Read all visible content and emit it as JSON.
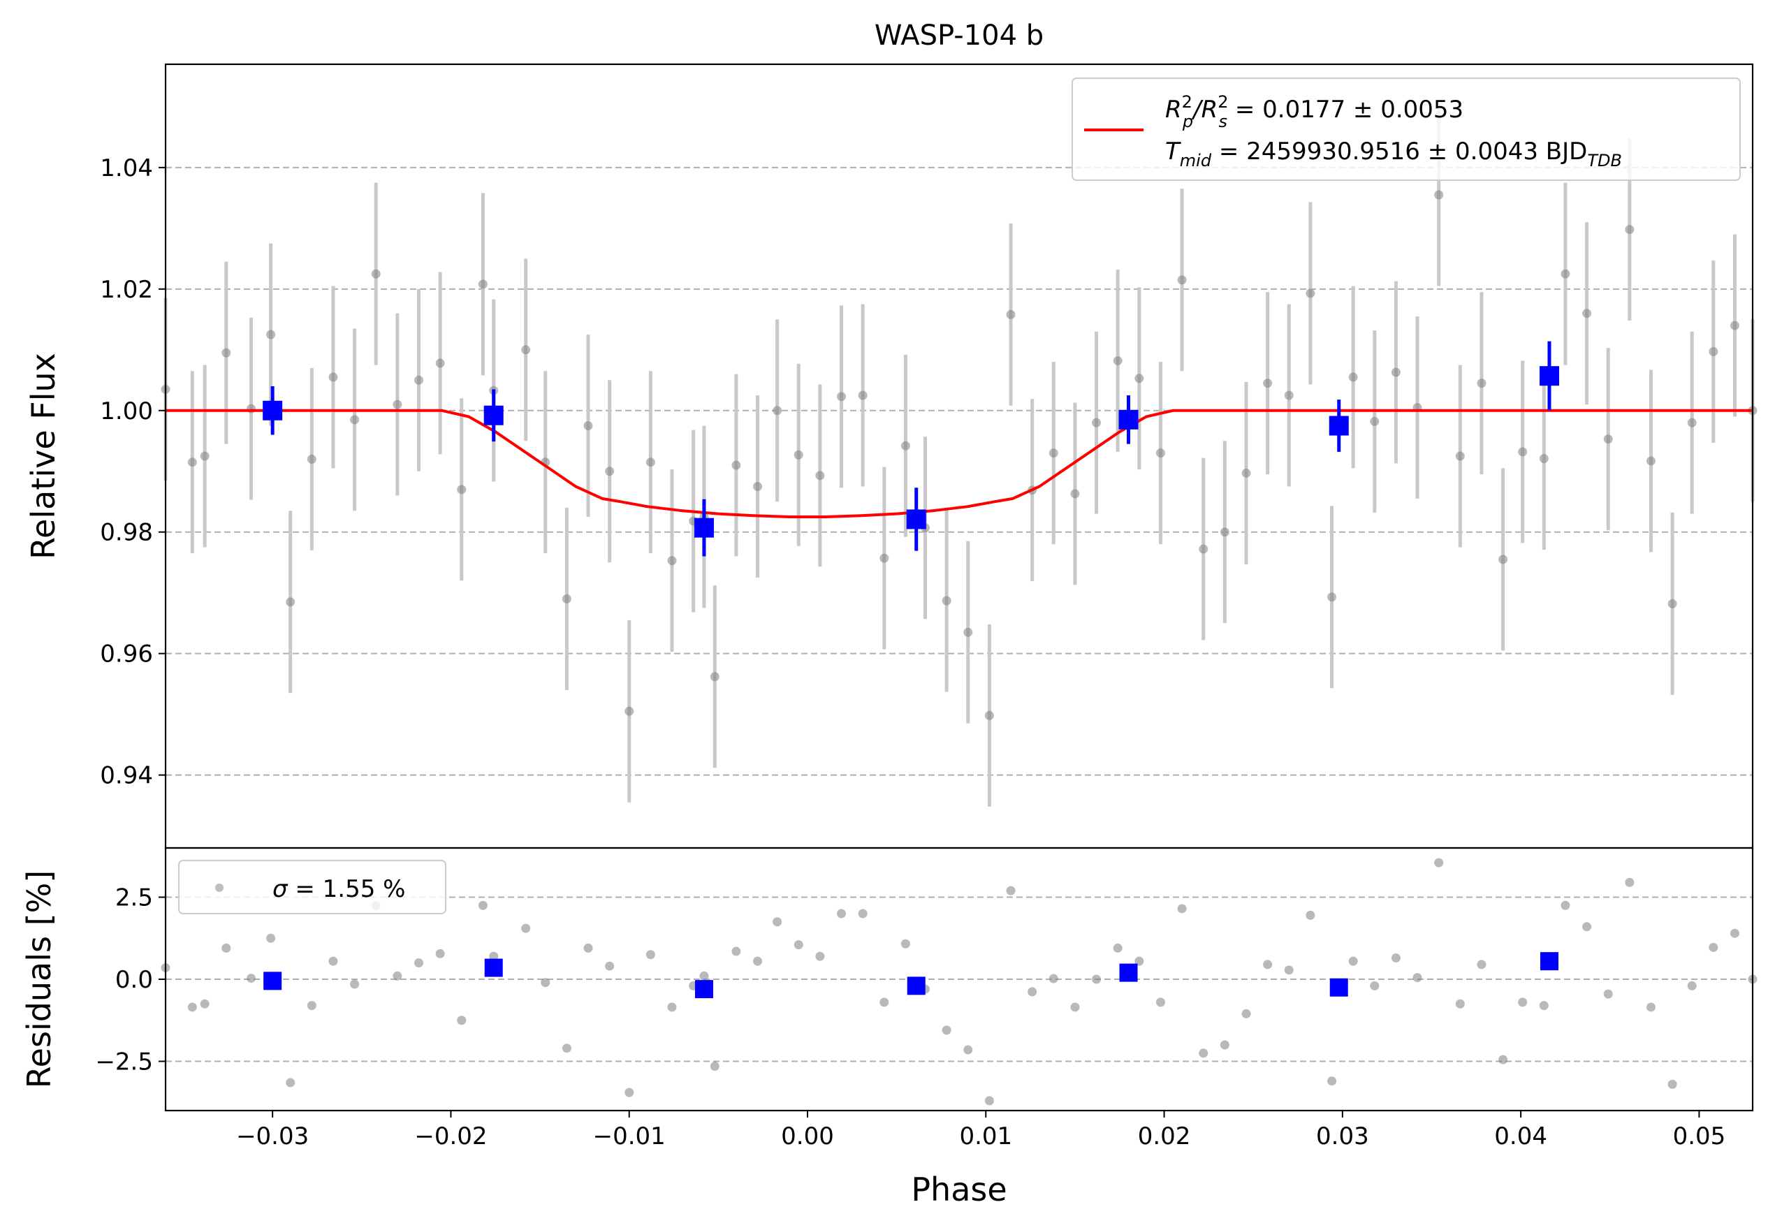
{
  "chart_data": {
    "type": "scatter",
    "title": "WASP-104 b",
    "xlabel": "Phase",
    "xlim": [
      -0.036,
      0.053
    ],
    "x_ticks": [
      -0.03,
      -0.02,
      -0.01,
      0.0,
      0.01,
      0.02,
      0.03,
      0.04,
      0.05
    ],
    "x_tick_labels": [
      "−0.03",
      "−0.02",
      "−0.01",
      "0.00",
      "0.01",
      "0.02",
      "0.03",
      "0.04",
      "0.05"
    ],
    "grid": "horizontal dashed",
    "colors": {
      "raw": "#808080",
      "raw_err": "#c8c8c8",
      "binned": "#0000ff",
      "model": "#ff0000",
      "grid": "#b0b0b0"
    },
    "top": {
      "ylabel": "Relative Flux",
      "ylim": [
        0.928,
        1.057
      ],
      "y_ticks": [
        0.94,
        0.96,
        0.98,
        1.0,
        1.02,
        1.04
      ],
      "y_tick_labels": [
        "0.94",
        "0.96",
        "0.98",
        "1.00",
        "1.02",
        "1.04"
      ],
      "legend": {
        "position": "upper right",
        "line1": {
          "main": "R",
          "sup1": "2",
          "sub1": "p",
          "slash": "/R",
          "sup2": "2",
          "sub2": "s",
          "value": " = 0.0177 ± 0.0053"
        },
        "line2": {
          "main": "T",
          "sub": "mid",
          "value": " = 2459930.9516 ± 0.0043 BJD",
          "sub2": "TDB"
        }
      },
      "model": {
        "name": "transit model",
        "depth": 0.0177,
        "x": [
          -0.036,
          -0.0205,
          -0.019,
          -0.0175,
          -0.016,
          -0.0145,
          -0.013,
          -0.0115,
          -0.0105,
          -0.009,
          -0.007,
          -0.005,
          -0.003,
          -0.001,
          0.0,
          0.001,
          0.003,
          0.005,
          0.007,
          0.009,
          0.0105,
          0.0115,
          0.013,
          0.0145,
          0.016,
          0.0175,
          0.019,
          0.0205,
          0.053
        ],
        "y": [
          1.0,
          1.0,
          0.999,
          0.9965,
          0.9935,
          0.9905,
          0.9875,
          0.9855,
          0.985,
          0.9842,
          0.9835,
          0.983,
          0.9827,
          0.9825,
          0.9825,
          0.9825,
          0.9827,
          0.983,
          0.9835,
          0.9842,
          0.985,
          0.9855,
          0.9875,
          0.9905,
          0.9935,
          0.9965,
          0.999,
          1.0,
          1.0
        ]
      },
      "raw": {
        "name": "data",
        "x": [
          -0.036,
          -0.0345,
          -0.0338,
          -0.0326,
          -0.0312,
          -0.0301,
          -0.029,
          -0.0278,
          -0.0266,
          -0.0254,
          -0.0242,
          -0.023,
          -0.0218,
          -0.0206,
          -0.0194,
          -0.0182,
          -0.0176,
          -0.0158,
          -0.0147,
          -0.0135,
          -0.0123,
          -0.0111,
          -0.01,
          -0.0088,
          -0.0076,
          -0.0064,
          -0.0058,
          -0.0052,
          -0.004,
          -0.0028,
          -0.0017,
          -0.0005,
          0.0007,
          0.0019,
          0.0031,
          0.0043,
          0.0055,
          0.0066,
          0.0078,
          0.009,
          0.0102,
          0.0114,
          0.0126,
          0.0138,
          0.015,
          0.0162,
          0.0174,
          0.0186,
          0.0198,
          0.021,
          0.0222,
          0.0234,
          0.0246,
          0.0258,
          0.027,
          0.0282,
          0.0294,
          0.0306,
          0.0318,
          0.033,
          0.0342,
          0.0354,
          0.0366,
          0.0378,
          0.039,
          0.0401,
          0.0413,
          0.0425,
          0.0437,
          0.0449,
          0.0461,
          0.0473,
          0.0485,
          0.0496,
          0.0508,
          0.052,
          0.053
        ],
        "y": [
          1.0035,
          0.9915,
          0.9925,
          1.0095,
          1.0003,
          1.0125,
          0.9685,
          0.992,
          1.0055,
          0.9985,
          1.0225,
          1.001,
          1.005,
          1.0078,
          0.987,
          1.0208,
          1.0033,
          1.01,
          0.9915,
          0.969,
          0.9975,
          0.99,
          0.9505,
          0.9915,
          0.9753,
          0.9818,
          0.9825,
          0.9562,
          0.991,
          0.9875,
          1.0,
          0.9927,
          0.9893,
          1.0023,
          1.0025,
          0.9757,
          0.9942,
          0.9807,
          0.9687,
          0.9635,
          0.9498,
          1.0158,
          0.9869,
          0.993,
          0.9863,
          0.998,
          1.0082,
          1.0053,
          0.993,
          1.0215,
          0.9772,
          0.98,
          0.9897,
          1.0045,
          1.0025,
          1.0193,
          0.9693,
          1.0055,
          0.9982,
          1.0063,
          1.0005,
          1.0355,
          0.9925,
          1.0045,
          0.9755,
          0.9932,
          0.9921,
          1.0225,
          1.016,
          0.9953,
          1.0298,
          0.9917,
          0.9682,
          0.998,
          1.0097,
          1.014,
          1.0
        ],
        "err": 0.015
      },
      "binned": {
        "name": "binned data",
        "x": [
          -0.03,
          -0.0176,
          -0.0058,
          0.0061,
          0.018,
          0.0298,
          0.0416
        ],
        "y": [
          1.0,
          0.9992,
          0.9807,
          0.9821,
          0.9985,
          0.9975,
          1.0057
        ],
        "err": [
          0.004,
          0.0043,
          0.0047,
          0.0052,
          0.004,
          0.0043,
          0.0057
        ]
      }
    },
    "bottom": {
      "ylabel": "Residuals [%]",
      "ylim": [
        -4.0,
        4.0
      ],
      "y_ticks": [
        -2.5,
        0.0,
        2.5
      ],
      "y_tick_labels": [
        "−2.5",
        "0.0",
        "2.5"
      ],
      "legend": {
        "position": "upper left",
        "symbol": "σ",
        "value": " = 1.55 %"
      },
      "raw_x": [
        -0.036,
        -0.0345,
        -0.0338,
        -0.0326,
        -0.0312,
        -0.0301,
        -0.029,
        -0.0278,
        -0.0266,
        -0.0254,
        -0.0242,
        -0.023,
        -0.0218,
        -0.0206,
        -0.0194,
        -0.0182,
        -0.0176,
        -0.0158,
        -0.0147,
        -0.0135,
        -0.0123,
        -0.0111,
        -0.01,
        -0.0088,
        -0.0076,
        -0.0064,
        -0.0058,
        -0.0052,
        -0.004,
        -0.0028,
        -0.0017,
        -0.0005,
        0.0007,
        0.0019,
        0.0031,
        0.0043,
        0.0055,
        0.0066,
        0.0078,
        0.009,
        0.0102,
        0.0114,
        0.0126,
        0.0138,
        0.015,
        0.0162,
        0.0174,
        0.0186,
        0.0198,
        0.021,
        0.0222,
        0.0234,
        0.0246,
        0.0258,
        0.027,
        0.0282,
        0.0294,
        0.0306,
        0.0318,
        0.033,
        0.0342,
        0.0354,
        0.0366,
        0.0378,
        0.039,
        0.0401,
        0.0413,
        0.0425,
        0.0437,
        0.0449,
        0.0461,
        0.0473,
        0.0485,
        0.0496,
        0.0508,
        0.052,
        0.053
      ],
      "raw_y": [
        0.35,
        -0.85,
        -0.75,
        0.95,
        0.03,
        1.25,
        -3.15,
        -0.8,
        0.55,
        -0.15,
        2.25,
        0.1,
        0.5,
        0.78,
        -1.25,
        2.25,
        0.7,
        1.55,
        -0.1,
        -2.1,
        0.95,
        0.4,
        -3.45,
        0.75,
        -0.85,
        -0.2,
        0.1,
        -2.65,
        0.85,
        0.55,
        1.75,
        1.05,
        0.7,
        2.0,
        2.0,
        -0.7,
        1.08,
        -0.3,
        -1.55,
        -2.15,
        -3.7,
        2.7,
        -0.38,
        0.02,
        -0.85,
        0.0,
        0.95,
        0.55,
        -0.7,
        2.15,
        -2.25,
        -2.0,
        -1.05,
        0.45,
        0.28,
        1.95,
        -3.1,
        0.55,
        -0.2,
        0.65,
        0.05,
        3.55,
        -0.75,
        0.45,
        -2.45,
        -0.7,
        -0.8,
        2.25,
        1.6,
        -0.45,
        2.95,
        -0.85,
        -3.2,
        -0.2,
        0.97,
        1.4,
        0.0
      ],
      "binned_y": [
        -0.05,
        0.35,
        -0.3,
        -0.2,
        0.2,
        -0.25,
        0.55
      ]
    }
  }
}
